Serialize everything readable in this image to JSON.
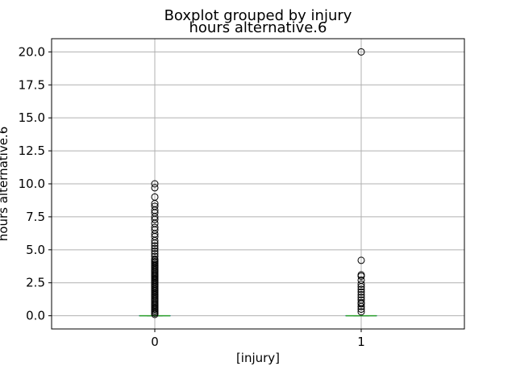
{
  "chart_data": {
    "type": "box",
    "suptitle": "Boxplot grouped by injury",
    "title": "hours alternative.6",
    "xlabel": "[injury]",
    "ylabel": "hours alternative.6",
    "categories": [
      "0",
      "1"
    ],
    "ylim": [
      -1.0,
      21.0
    ],
    "yticks": [
      "0.0",
      "2.5",
      "5.0",
      "7.5",
      "10.0",
      "12.5",
      "15.0",
      "17.5",
      "20.0"
    ],
    "grid": true,
    "colors": {
      "median": "#2ca02c",
      "box": "#1f77b4",
      "outlier": "#000000",
      "grid": "#b0b0b0"
    },
    "boxes": [
      {
        "category": "0",
        "min": 0,
        "q1": 0,
        "median": 0,
        "q3": 0,
        "max": 0,
        "outliers": [
          0.1,
          0.2,
          0.3,
          0.4,
          0.5,
          0.6,
          0.7,
          0.8,
          0.9,
          1.0,
          1.1,
          1.2,
          1.3,
          1.4,
          1.5,
          1.6,
          1.7,
          1.8,
          1.9,
          2.0,
          2.1,
          2.2,
          2.3,
          2.4,
          2.5,
          2.6,
          2.7,
          2.8,
          2.9,
          3.0,
          3.1,
          3.2,
          3.3,
          3.4,
          3.5,
          3.6,
          3.7,
          3.8,
          3.9,
          4.0,
          4.1,
          4.2,
          4.3,
          4.5,
          4.7,
          4.9,
          5.1,
          5.3,
          5.5,
          5.7,
          6.0,
          6.2,
          6.5,
          6.7,
          7.0,
          7.3,
          7.5,
          7.8,
          8.0,
          8.3,
          8.5,
          9.0,
          9.7,
          10.0
        ]
      },
      {
        "category": "1",
        "min": 0,
        "q1": 0,
        "median": 0,
        "q3": 0,
        "max": 0,
        "outliers": [
          0.3,
          0.5,
          0.7,
          0.9,
          1.0,
          1.2,
          1.4,
          1.6,
          1.8,
          2.0,
          2.2,
          2.4,
          2.7,
          3.0,
          3.1,
          4.2,
          20.0
        ]
      }
    ]
  }
}
